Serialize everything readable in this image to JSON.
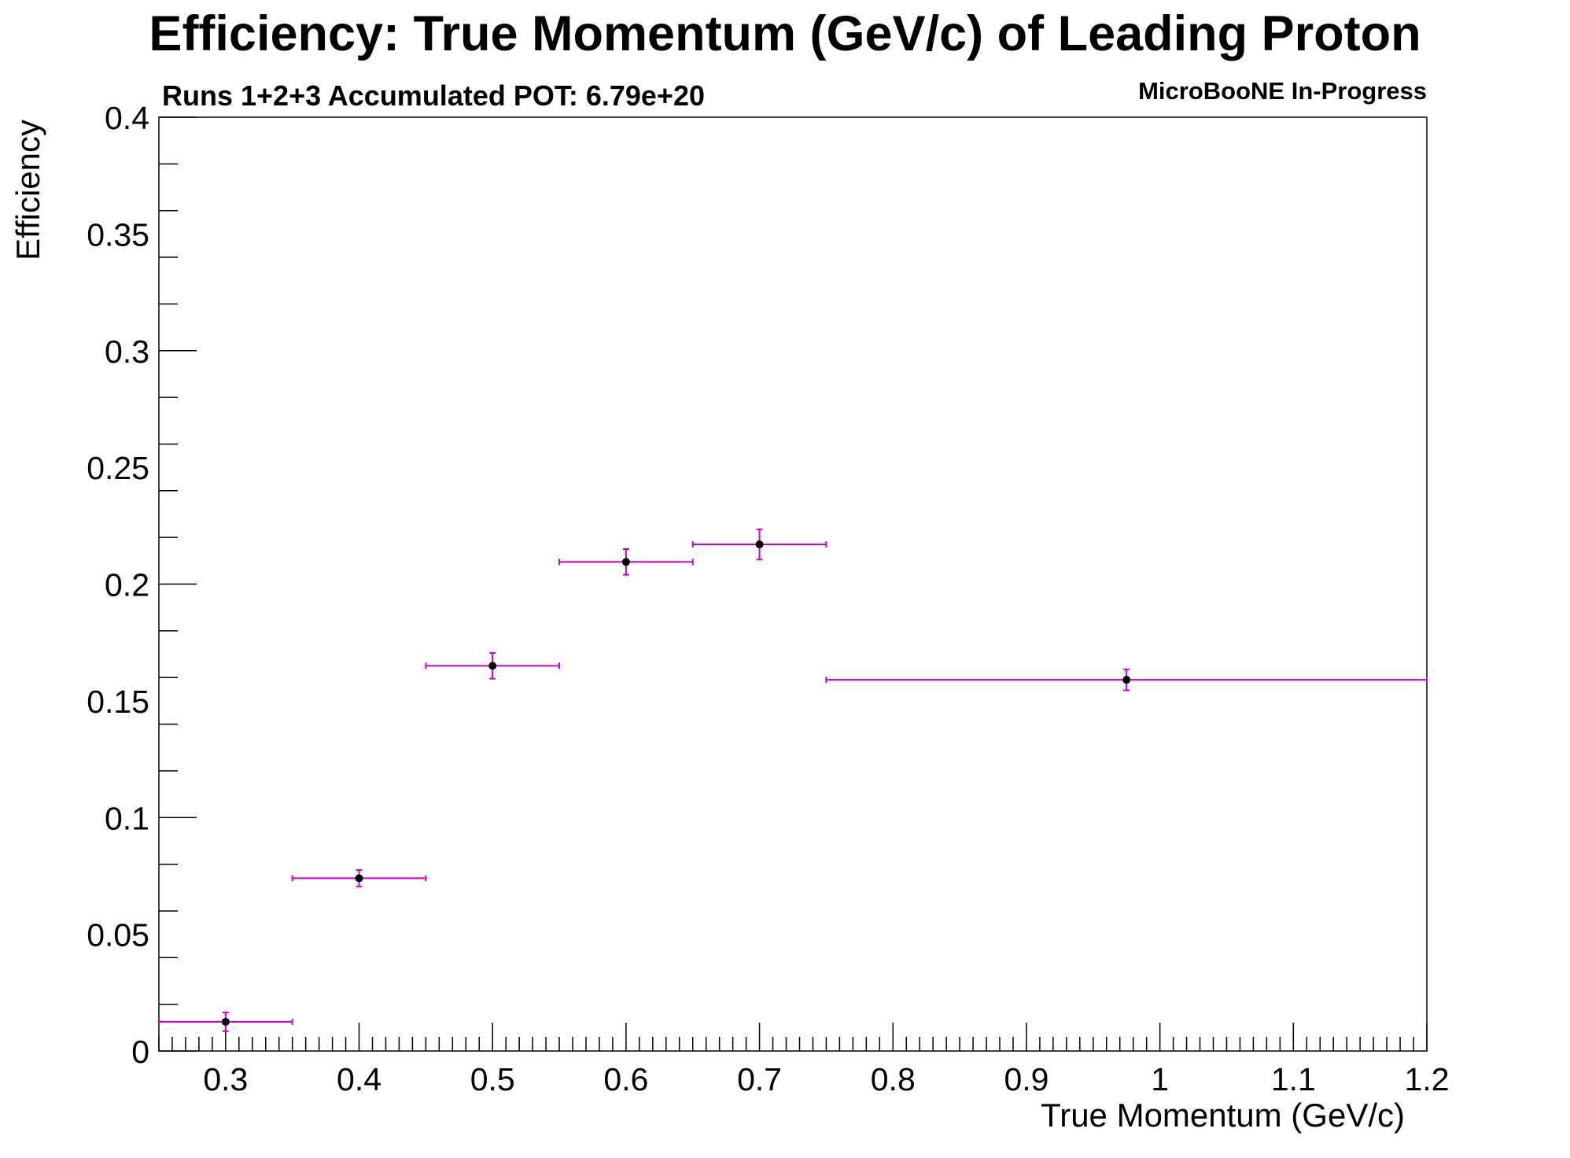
{
  "chart_data": {
    "type": "scatter",
    "title": "Efficiency: True Momentum (GeV/c) of Leading Proton",
    "subtitle": "Runs 1+2+3 Accumulated POT: 6.79e+20",
    "watermark": "MicroBooNE In-Progress",
    "xlabel": "True Momentum (GeV/c)",
    "ylabel": "Efficiency",
    "xlim": [
      0.25,
      1.2
    ],
    "ylim": [
      0,
      0.4
    ],
    "x_ticks": [
      0.3,
      0.4,
      0.5,
      0.6,
      0.7,
      0.8,
      0.9,
      1,
      1.1,
      1.2
    ],
    "x_tick_labels": [
      "0.3",
      "0.4",
      "0.5",
      "0.6",
      "0.7",
      "0.8",
      "0.9",
      "1",
      "1.1",
      "1.2"
    ],
    "y_ticks": [
      0,
      0.05,
      0.1,
      0.15,
      0.2,
      0.25,
      0.3,
      0.35,
      0.4
    ],
    "y_tick_labels": [
      "0",
      "0.05",
      "0.1",
      "0.15",
      "0.2",
      "0.25",
      "0.3",
      "0.35",
      "0.4"
    ],
    "grid": false,
    "error_bar_color": "#cc00cc",
    "marker_color": "#000000",
    "points": [
      {
        "x": 0.3,
        "x_low": 0.25,
        "x_high": 0.35,
        "y": 0.0125,
        "y_err": 0.004
      },
      {
        "x": 0.4,
        "x_low": 0.35,
        "x_high": 0.45,
        "y": 0.074,
        "y_err": 0.0035
      },
      {
        "x": 0.5,
        "x_low": 0.45,
        "x_high": 0.55,
        "y": 0.165,
        "y_err": 0.0055
      },
      {
        "x": 0.6,
        "x_low": 0.55,
        "x_high": 0.65,
        "y": 0.2095,
        "y_err": 0.0055
      },
      {
        "x": 0.7,
        "x_low": 0.65,
        "x_high": 0.75,
        "y": 0.217,
        "y_err": 0.0065
      },
      {
        "x": 0.975,
        "x_low": 0.75,
        "x_high": 1.2,
        "y": 0.159,
        "y_err": 0.0045
      }
    ]
  }
}
